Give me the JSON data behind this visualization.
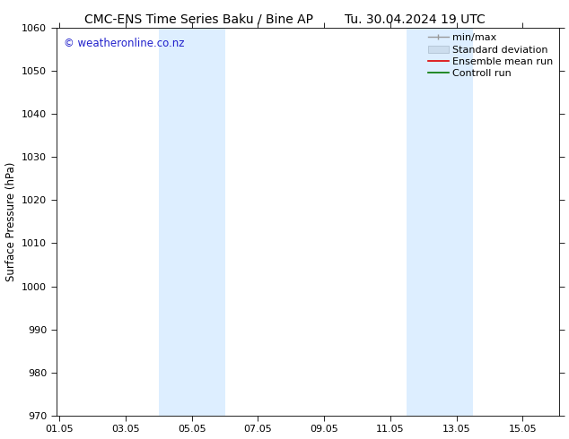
{
  "title_left": "CMC-ENS Time Series Baku / Bine AP",
  "title_right": "Tu. 30.04.2024 19 UTC",
  "ylabel": "Surface Pressure (hPa)",
  "ylim": [
    970,
    1060
  ],
  "yticks": [
    970,
    980,
    990,
    1000,
    1010,
    1020,
    1030,
    1040,
    1050,
    1060
  ],
  "xtick_labels": [
    "01.05",
    "03.05",
    "05.05",
    "07.05",
    "09.05",
    "11.05",
    "13.05",
    "15.05"
  ],
  "xtick_positions": [
    0,
    2,
    4,
    6,
    8,
    10,
    12,
    14
  ],
  "xlim": [
    -0.1,
    15.1
  ],
  "shaded_bands": [
    {
      "x_start": 3.0,
      "x_end": 5.0
    },
    {
      "x_start": 10.5,
      "x_end": 12.5
    }
  ],
  "shaded_color": "#ddeeff",
  "background_color": "#ffffff",
  "watermark_text": "© weatheronline.co.nz",
  "watermark_color": "#2222cc",
  "legend_labels": [
    "min/max",
    "Standard deviation",
    "Ensemble mean run",
    "Controll run"
  ],
  "legend_colors_line": [
    "#999999",
    "#bbbbbb",
    "#dd0000",
    "#007700"
  ],
  "title_fontsize": 10,
  "tick_fontsize": 8,
  "ylabel_fontsize": 8.5,
  "legend_fontsize": 8,
  "watermark_fontsize": 8.5
}
